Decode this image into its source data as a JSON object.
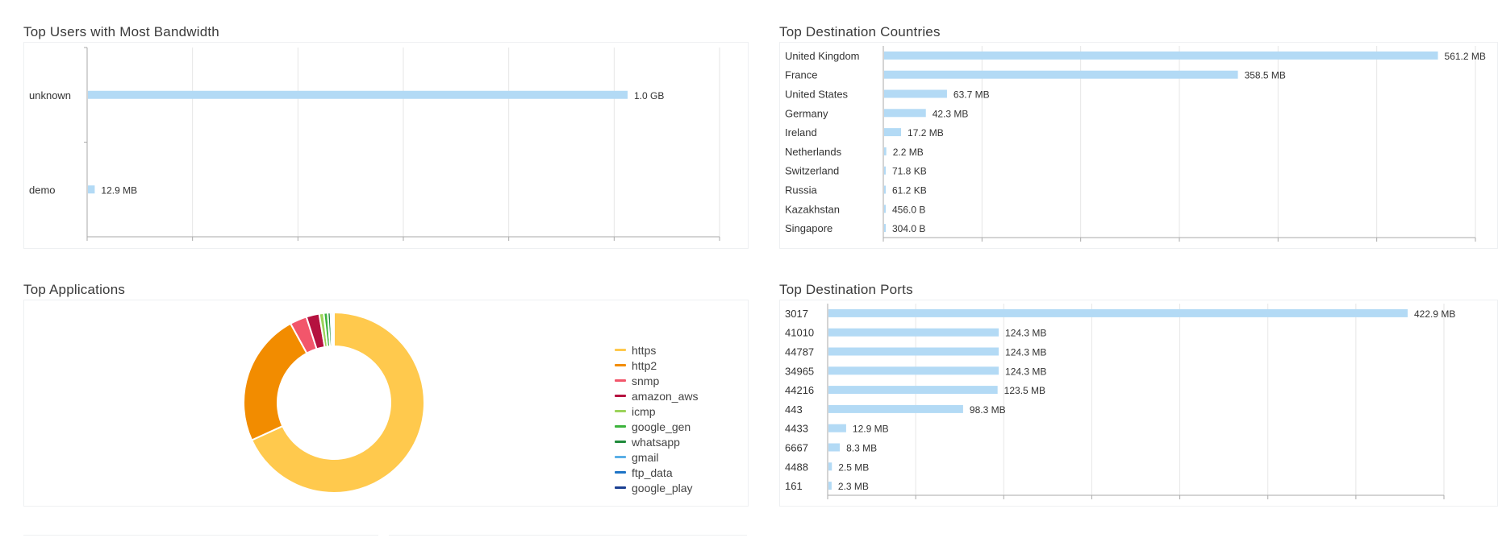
{
  "users_panel": {
    "title": "Top Users with Most Bandwidth",
    "chart_data": {
      "type": "bar",
      "orientation": "horizontal",
      "categories": [
        "unknown",
        "demo"
      ],
      "values": [
        1024,
        12.9
      ],
      "value_labels": [
        "1.0 GB",
        "12.9 MB"
      ],
      "unit": "MB",
      "xlim": [
        0,
        1200
      ],
      "grid": true
    }
  },
  "countries_panel": {
    "title": "Top Destination Countries",
    "chart_data": {
      "type": "bar",
      "orientation": "horizontal",
      "categories": [
        "United Kingdom",
        "France",
        "United States",
        "Germany",
        "Ireland",
        "Netherlands",
        "Switzerland",
        "Russia",
        "Kazakhstan",
        "Singapore"
      ],
      "values": [
        561.2,
        358.5,
        63.7,
        42.3,
        17.2,
        2.2,
        0.0718,
        0.0612,
        0.000456,
        0.000304
      ],
      "value_labels": [
        "561.2 MB",
        "358.5 MB",
        "63.7 MB",
        "42.3 MB",
        "17.2 MB",
        "2.2 MB",
        "71.8 KB",
        "61.2 KB",
        "456.0 B",
        "304.0 B"
      ],
      "unit": "MB",
      "xlim": [
        0,
        600
      ],
      "grid": true
    }
  },
  "apps_panel": {
    "title": "Top Applications",
    "chart_data": {
      "type": "pie",
      "style": "donut",
      "labels": [
        "https",
        "http2",
        "snmp",
        "amazon_aws",
        "icmp",
        "google_gen",
        "whatsapp",
        "gmail",
        "ftp_data",
        "google_play"
      ],
      "values": [
        67.5,
        23.6,
        3.0,
        2.3,
        0.8,
        0.7,
        0.5,
        0.3,
        0.2,
        0.1
      ],
      "colors": [
        "#FFC94D",
        "#F28C00",
        "#F2566B",
        "#B5123F",
        "#9CD35A",
        "#3CB33C",
        "#1F8A3A",
        "#5AAFE6",
        "#1E74C6",
        "#1B3F91"
      ],
      "legend_position": "right"
    }
  },
  "ports_panel": {
    "title": "Top Destination Ports",
    "chart_data": {
      "type": "bar",
      "orientation": "horizontal",
      "categories": [
        "3017",
        "41010",
        "44787",
        "34965",
        "44216",
        "443",
        "4433",
        "6667",
        "4488",
        "161"
      ],
      "values": [
        422.9,
        124.3,
        124.3,
        124.3,
        123.5,
        98.3,
        12.9,
        8.3,
        2.5,
        2.3
      ],
      "value_labels": [
        "422.9 MB",
        "124.3 MB",
        "124.3 MB",
        "124.3 MB",
        "123.5 MB",
        "98.3 MB",
        "12.9 MB",
        "8.3 MB",
        "2.5 MB",
        "2.3 MB"
      ],
      "unit": "MB",
      "xlim": [
        0,
        450
      ],
      "grid": true
    }
  },
  "colors": {
    "bar": "#B3DAF5",
    "grid": "#E6E6E6",
    "axis": "#AAAAAA"
  }
}
